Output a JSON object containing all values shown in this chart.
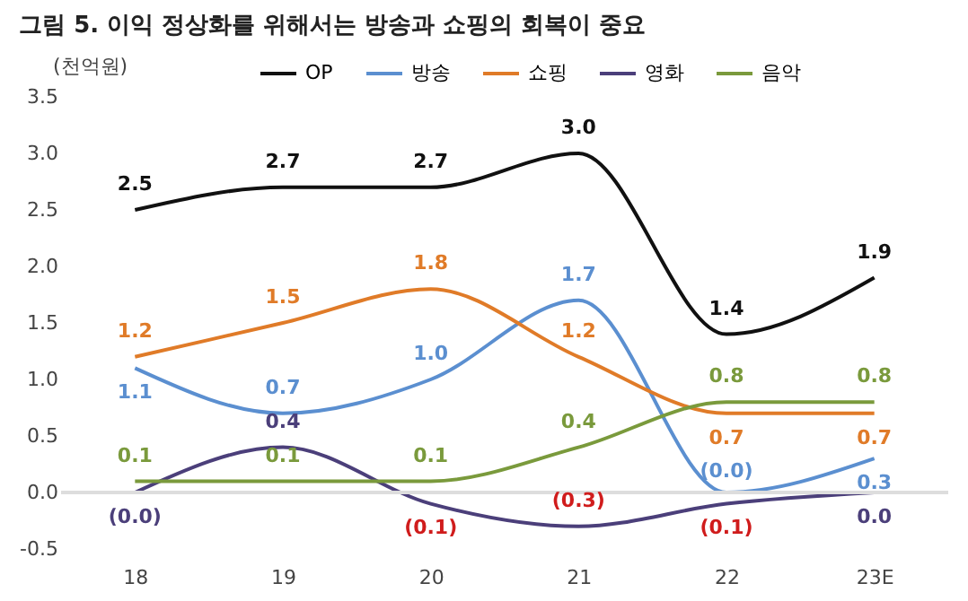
{
  "chart_data": {
    "type": "line",
    "title": "그림 5.  이익 정상화를 위해서는 방송과 쇼핑의 회복이 중요",
    "ylabel": "(천억원)",
    "categories": [
      "18",
      "19",
      "20",
      "21",
      "22",
      "23E"
    ],
    "series": [
      {
        "name": "OP",
        "color": "#111111",
        "values": [
          2.5,
          2.7,
          2.7,
          3.0,
          1.4,
          1.9
        ],
        "value_labels": [
          "2.5",
          "2.7",
          "2.7",
          "3.0",
          "1.4",
          "1.9"
        ]
      },
      {
        "name": "방송",
        "color": "#5b8fd0",
        "values": [
          1.1,
          0.7,
          1.0,
          1.7,
          0.0,
          0.3
        ],
        "value_labels": [
          "1.1",
          "0.7",
          "1.0",
          "1.7",
          "(0.0)",
          "0.3"
        ]
      },
      {
        "name": "쇼핑",
        "color": "#e07b28",
        "values": [
          1.2,
          1.5,
          1.8,
          1.2,
          0.7,
          0.7
        ],
        "value_labels": [
          "1.2",
          "1.5",
          "1.8",
          "1.2",
          "0.7",
          "0.7"
        ]
      },
      {
        "name": "영화",
        "color": "#4b3f7a",
        "values": [
          0.0,
          0.4,
          -0.1,
          -0.3,
          -0.1,
          0.0
        ],
        "value_labels": [
          "(0.0)",
          "0.4",
          "(0.1)",
          "(0.3)",
          "(0.1)",
          "0.0"
        ]
      },
      {
        "name": "음악",
        "color": "#7a9a3c",
        "values": [
          0.1,
          0.1,
          0.1,
          0.4,
          0.8,
          0.8
        ],
        "value_labels": [
          "0.1",
          "0.1",
          "0.1",
          "0.4",
          "0.8",
          "0.8"
        ]
      }
    ],
    "ylim": [
      -0.5,
      3.5
    ],
    "yticks": [
      {
        "value": -0.5,
        "label": "-0.5"
      },
      {
        "value": 0,
        "label": "0.0"
      },
      {
        "value": 0.5,
        "label": "0.5"
      },
      {
        "value": 1,
        "label": "1.0"
      },
      {
        "value": 1.5,
        "label": "1.5"
      },
      {
        "value": 2,
        "label": "2.0"
      },
      {
        "value": 2.5,
        "label": "2.5"
      },
      {
        "value": 3,
        "label": "3.0"
      },
      {
        "value": 3.5,
        "label": "3.5"
      }
    ],
    "ref_lines": [
      {
        "axis": "y",
        "value": 0,
        "color": "#dddddd"
      }
    ],
    "grid": false,
    "legend": "top",
    "line_style": "solid",
    "marker": "none"
  }
}
